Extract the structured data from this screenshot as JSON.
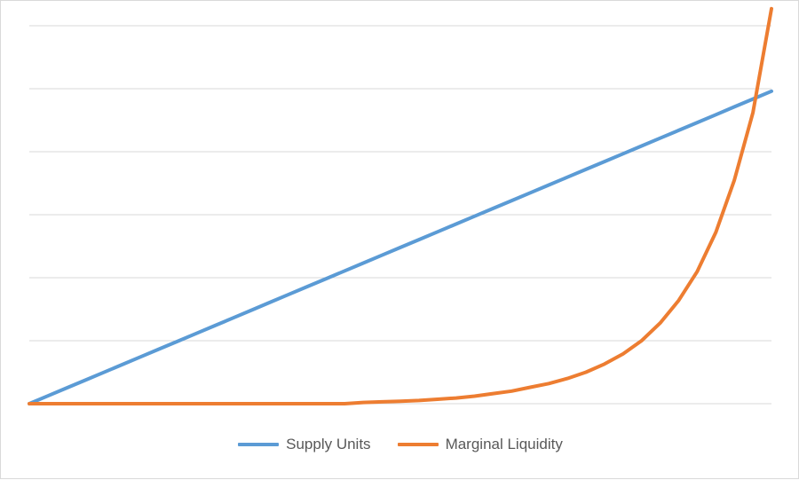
{
  "chart_data": {
    "type": "line",
    "title": "",
    "xlabel": "",
    "ylabel": "",
    "x": [
      0,
      1,
      2,
      3,
      4,
      5,
      6,
      7,
      8,
      9,
      10,
      11,
      12,
      13,
      14,
      15,
      16,
      17,
      18,
      19,
      20,
      21,
      22,
      23,
      24,
      25,
      26,
      27,
      28,
      29,
      30,
      31,
      32,
      33,
      34,
      35,
      36,
      37,
      38,
      39,
      40
    ],
    "xlim": [
      0,
      40
    ],
    "ylim": [
      0,
      6
    ],
    "grid": true,
    "legend_position": "bottom",
    "series": [
      {
        "name": "Supply Units",
        "color": "#5b9bd5",
        "values": [
          0,
          0.124,
          0.248,
          0.372,
          0.496,
          0.62,
          0.744,
          0.868,
          0.992,
          1.116,
          1.24,
          1.364,
          1.488,
          1.612,
          1.736,
          1.86,
          1.984,
          2.108,
          2.232,
          2.356,
          2.48,
          2.604,
          2.728,
          2.852,
          2.976,
          3.1,
          3.224,
          3.348,
          3.472,
          3.596,
          3.72,
          3.844,
          3.968,
          4.092,
          4.216,
          4.34,
          4.464,
          4.588,
          4.712,
          4.836,
          4.96
        ]
      },
      {
        "name": "Marginal Liquidity",
        "color": "#ed7d31",
        "values": [
          0,
          0,
          0,
          0,
          0,
          0,
          0,
          0,
          0,
          0,
          0,
          0,
          0,
          0,
          0,
          0,
          0,
          0,
          0.02,
          0.03,
          0.04,
          0.05,
          0.07,
          0.09,
          0.12,
          0.16,
          0.2,
          0.26,
          0.32,
          0.4,
          0.5,
          0.63,
          0.79,
          1.0,
          1.28,
          1.64,
          2.1,
          2.72,
          3.55,
          4.62,
          6.27
        ]
      }
    ]
  }
}
